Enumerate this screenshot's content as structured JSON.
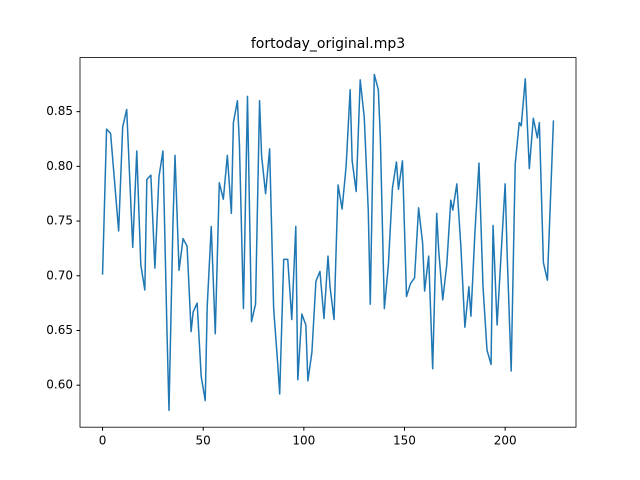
{
  "chart_data": {
    "type": "line",
    "title": "fortoday_original.mp3",
    "x": [
      0,
      2,
      4,
      8,
      10,
      12,
      15,
      17,
      19,
      21,
      22,
      24,
      26,
      28,
      30,
      32,
      33,
      35,
      36,
      38,
      40,
      42,
      44,
      45,
      47,
      49,
      51,
      52,
      54,
      56,
      58,
      60,
      62,
      64,
      65,
      67,
      68,
      70,
      72,
      74,
      76,
      78,
      79,
      81,
      83,
      85,
      87,
      88,
      90,
      92,
      94,
      96,
      97,
      99,
      101,
      102,
      104,
      106,
      108,
      110,
      112,
      113,
      115,
      117,
      119,
      121,
      123,
      124,
      126,
      128,
      130,
      132,
      133,
      135,
      137,
      138,
      140,
      142,
      144,
      146,
      147,
      149,
      151,
      153,
      155,
      157,
      159,
      160,
      162,
      164,
      166,
      167,
      169,
      171,
      173,
      174,
      176,
      178,
      180,
      182,
      183,
      185,
      187,
      189,
      191,
      193,
      194,
      196,
      198,
      200,
      201,
      203,
      205,
      207,
      208,
      210,
      212,
      214,
      216,
      217,
      219,
      221,
      224
    ],
    "series": [
      {
        "color": "#1f77b4",
        "values": [
          0.701,
          0.834,
          0.83,
          0.741,
          0.836,
          0.852,
          0.726,
          0.814,
          0.71,
          0.687,
          0.788,
          0.792,
          0.707,
          0.79,
          0.814,
          0.65,
          0.577,
          0.75,
          0.81,
          0.705,
          0.734,
          0.727,
          0.649,
          0.667,
          0.675,
          0.608,
          0.586,
          0.672,
          0.745,
          0.647,
          0.785,
          0.77,
          0.81,
          0.757,
          0.84,
          0.86,
          0.82,
          0.67,
          0.864,
          0.658,
          0.674,
          0.86,
          0.81,
          0.775,
          0.816,
          0.67,
          0.62,
          0.592,
          0.715,
          0.715,
          0.66,
          0.745,
          0.605,
          0.665,
          0.655,
          0.604,
          0.63,
          0.695,
          0.704,
          0.661,
          0.718,
          0.69,
          0.66,
          0.783,
          0.761,
          0.8,
          0.87,
          0.805,
          0.777,
          0.879,
          0.845,
          0.76,
          0.674,
          0.884,
          0.87,
          0.826,
          0.67,
          0.71,
          0.78,
          0.804,
          0.779,
          0.805,
          0.681,
          0.693,
          0.698,
          0.762,
          0.73,
          0.686,
          0.718,
          0.615,
          0.757,
          0.723,
          0.678,
          0.71,
          0.769,
          0.76,
          0.784,
          0.727,
          0.653,
          0.69,
          0.663,
          0.74,
          0.803,
          0.69,
          0.632,
          0.619,
          0.746,
          0.655,
          0.72,
          0.784,
          0.72,
          0.613,
          0.802,
          0.84,
          0.837,
          0.88,
          0.798,
          0.844,
          0.826,
          0.84,
          0.712,
          0.696,
          0.842
        ]
      }
    ],
    "xlim": [
      -11.2,
      235.2
    ],
    "xticks": [
      0,
      50,
      100,
      150,
      200
    ],
    "ylim": [
      0.5616,
      0.8994
    ],
    "yticks": [
      {
        "value": 0.6,
        "label": "0.60"
      },
      {
        "value": 0.65,
        "label": "0.65"
      },
      {
        "value": 0.7,
        "label": "0.70"
      },
      {
        "value": 0.75,
        "label": "0.75"
      },
      {
        "value": 0.8,
        "label": "0.80"
      },
      {
        "value": 0.85,
        "label": "0.85"
      }
    ],
    "grid": false
  }
}
